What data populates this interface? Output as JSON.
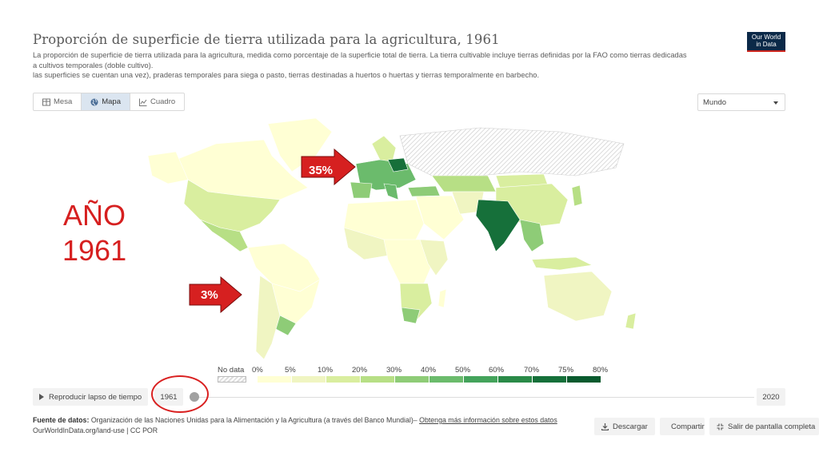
{
  "header": {
    "title": "Proporción de superficie de tierra utilizada para la agricultura, 1961",
    "subtitle_line1": "La proporción de superficie de tierra utilizada para la agricultura, medida como porcentaje de la superficie total de tierra. La tierra cultivable incluye tierras definidas por la FAO como tierras dedicadas",
    "subtitle_line2": "a cultivos temporales (doble cultivo).",
    "subtitle_line3": "las superficies se cuentan una vez), praderas temporales para siega o pasto, tierras destinadas a huertos o huertas y tierras temporalmente en barbecho.",
    "logo_line1": "Our World",
    "logo_line2": "in Data"
  },
  "tabs": [
    {
      "label": "Mesa",
      "icon": "table-icon",
      "active": false
    },
    {
      "label": "Mapa",
      "icon": "globe-icon",
      "active": true
    },
    {
      "label": "Cuadro",
      "icon": "line-chart-icon",
      "active": false
    }
  ],
  "region_select": {
    "value": "Mundo"
  },
  "annotations": {
    "year_line1": "AÑO",
    "year_line2": "1961",
    "europe_arrow_label": "35%",
    "south_america_arrow_label": "3%",
    "arrow_color": "#d62020"
  },
  "legend": {
    "nodata_label": "No data",
    "ticks": [
      "0%",
      "5%",
      "10%",
      "20%",
      "30%",
      "40%",
      "50%",
      "60%",
      "70%",
      "75%",
      "80%"
    ],
    "colors": [
      "#ffffd4",
      "#f0f5c2",
      "#d9ee9f",
      "#b7df85",
      "#8ecc77",
      "#6bbb6c",
      "#44a35b",
      "#2a8a48",
      "#16703a",
      "#0a5a2e"
    ]
  },
  "timeline": {
    "play_label": "Reproducir lapso de tiempo",
    "start_year": "1961",
    "end_year": "2020",
    "progress": 0
  },
  "footer": {
    "source_label": "Fuente de datos:",
    "source_text": "Organización de las Naciones Unidas para la Alimentación y la Agricultura (a través del Banco Mundial)–",
    "source_link": "Obtenga más información sobre estos datos",
    "url_line": "OurWorldInData.org/land-use | CC POR",
    "download_label": "Descargar",
    "share_label": "Compartir",
    "fullscreen_label": "Salir de pantalla completa"
  }
}
